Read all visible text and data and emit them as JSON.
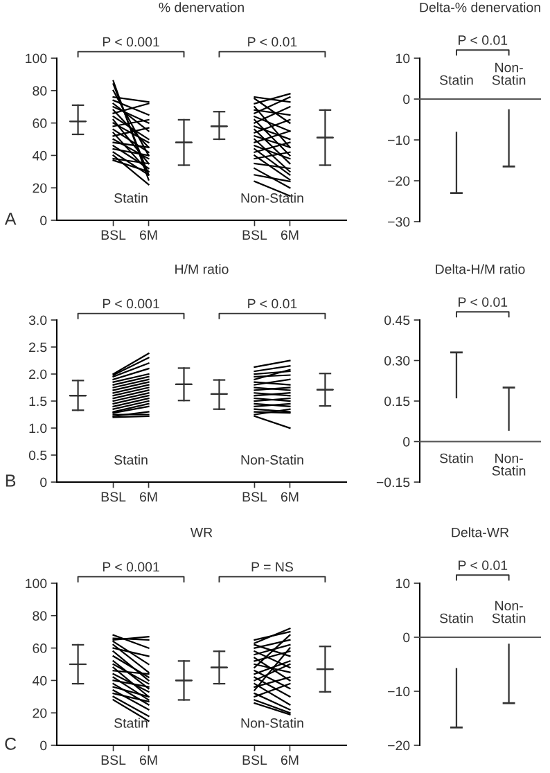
{
  "chart_data": [
    {
      "type": "line",
      "title": "% denervation",
      "categories": [
        null,
        "BSL",
        "6M",
        null,
        null,
        "BSL",
        "6M",
        null
      ],
      "ylim": [
        0,
        100
      ],
      "yticks": [
        0,
        20,
        40,
        60,
        80,
        100
      ],
      "annotations": [
        "P < 0.001",
        "P < 0.01",
        "Statin",
        "Non-Statin",
        "A"
      ],
      "series": [
        {
          "type": "box",
          "boxes": [
            {
              "low": 53,
              "q1": 61,
              "median": 61,
              "q3": 61,
              "high": 71
            },
            null,
            null,
            {
              "low": 34,
              "q1": 48,
              "median": 48,
              "q3": 48,
              "high": 62
            },
            {
              "low": 50,
              "q1": 58,
              "median": 58,
              "q3": 58,
              "high": 67
            },
            null,
            null,
            {
              "low": 34,
              "q1": 51,
              "median": 51,
              "q3": 51,
              "high": 68
            }
          ],
          "color": "#333333"
        },
        {
          "values": [
            null,
            86,
            25,
            null,
            null,
            null,
            null,
            null
          ],
          "color": "#000000"
        },
        {
          "values": [
            null,
            84,
            28,
            null,
            null,
            null,
            null,
            null
          ],
          "color": "#000000"
        },
        {
          "values": [
            null,
            80,
            40,
            null,
            null,
            null,
            null,
            null
          ],
          "color": "#000000"
        },
        {
          "values": [
            null,
            76,
            73,
            null,
            null,
            null,
            null,
            null
          ],
          "color": "#000000"
        },
        {
          "values": [
            null,
            74,
            65,
            null,
            null,
            null,
            null,
            null
          ],
          "color": "#000000"
        },
        {
          "values": [
            null,
            72,
            55,
            null,
            null,
            null,
            null,
            null
          ],
          "color": "#000000"
        },
        {
          "values": [
            null,
            70,
            60,
            null,
            null,
            null,
            null,
            null
          ],
          "color": "#000000"
        },
        {
          "values": [
            null,
            68,
            45,
            null,
            null,
            null,
            null,
            null
          ],
          "color": "#000000"
        },
        {
          "values": [
            null,
            66,
            72,
            null,
            null,
            null,
            null,
            null
          ],
          "color": "#000000"
        },
        {
          "values": [
            null,
            64,
            50,
            null,
            null,
            null,
            null,
            null
          ],
          "color": "#000000"
        },
        {
          "values": [
            null,
            62,
            35,
            null,
            null,
            null,
            null,
            null
          ],
          "color": "#000000"
        },
        {
          "values": [
            null,
            60,
            48,
            null,
            null,
            null,
            null,
            null
          ],
          "color": "#000000"
        },
        {
          "values": [
            null,
            58,
            62,
            null,
            null,
            null,
            null,
            null
          ],
          "color": "#000000"
        },
        {
          "values": [
            null,
            56,
            42,
            null,
            null,
            null,
            null,
            null
          ],
          "color": "#000000"
        },
        {
          "values": [
            null,
            54,
            30,
            null,
            null,
            null,
            null,
            null
          ],
          "color": "#000000"
        },
        {
          "values": [
            null,
            52,
            57,
            null,
            null,
            null,
            null,
            null
          ],
          "color": "#000000"
        },
        {
          "values": [
            null,
            50,
            38,
            null,
            null,
            null,
            null,
            null
          ],
          "color": "#000000"
        },
        {
          "values": [
            null,
            48,
            45,
            null,
            null,
            null,
            null,
            null
          ],
          "color": "#000000"
        },
        {
          "values": [
            null,
            46,
            32,
            null,
            null,
            null,
            null,
            null
          ],
          "color": "#000000"
        },
        {
          "values": [
            null,
            44,
            40,
            null,
            null,
            null,
            null,
            null
          ],
          "color": "#000000"
        },
        {
          "values": [
            null,
            42,
            28,
            null,
            null,
            null,
            null,
            null
          ],
          "color": "#000000"
        },
        {
          "values": [
            null,
            40,
            22,
            null,
            null,
            null,
            null,
            null
          ],
          "color": "#000000"
        },
        {
          "values": [
            null,
            38,
            35,
            null,
            null,
            null,
            null,
            null
          ],
          "color": "#000000"
        },
        {
          "values": [
            null,
            37,
            30,
            null,
            null,
            null,
            null,
            null
          ],
          "color": "#000000"
        },
        {
          "values": [
            null,
            null,
            null,
            null,
            null,
            76,
            73,
            null
          ],
          "color": "#000000"
        },
        {
          "values": [
            null,
            null,
            null,
            null,
            null,
            75,
            60,
            null
          ],
          "color": "#000000"
        },
        {
          "values": [
            null,
            null,
            null,
            null,
            null,
            72,
            78,
            null
          ],
          "color": "#000000"
        },
        {
          "values": [
            null,
            null,
            null,
            null,
            null,
            70,
            45,
            null
          ],
          "color": "#000000"
        },
        {
          "values": [
            null,
            null,
            null,
            null,
            null,
            68,
            65,
            null
          ],
          "color": "#000000"
        },
        {
          "values": [
            null,
            null,
            null,
            null,
            null,
            66,
            76,
            null
          ],
          "color": "#000000"
        },
        {
          "values": [
            null,
            null,
            null,
            null,
            null,
            64,
            55,
            null
          ],
          "color": "#000000"
        },
        {
          "values": [
            null,
            null,
            null,
            null,
            null,
            62,
            40,
            null
          ],
          "color": "#000000"
        },
        {
          "values": [
            null,
            null,
            null,
            null,
            null,
            60,
            70,
            null
          ],
          "color": "#000000"
        },
        {
          "values": [
            null,
            null,
            null,
            null,
            null,
            58,
            50,
            null
          ],
          "color": "#000000"
        },
        {
          "values": [
            null,
            null,
            null,
            null,
            null,
            56,
            35,
            null
          ],
          "color": "#000000"
        },
        {
          "values": [
            null,
            null,
            null,
            null,
            null,
            54,
            62,
            null
          ],
          "color": "#000000"
        },
        {
          "values": [
            null,
            null,
            null,
            null,
            null,
            52,
            45,
            null
          ],
          "color": "#000000"
        },
        {
          "values": [
            null,
            null,
            null,
            null,
            null,
            50,
            30,
            null
          ],
          "color": "#000000"
        },
        {
          "values": [
            null,
            null,
            null,
            null,
            null,
            48,
            55,
            null
          ],
          "color": "#000000"
        },
        {
          "values": [
            null,
            null,
            null,
            null,
            null,
            46,
            38,
            null
          ],
          "color": "#000000"
        },
        {
          "values": [
            null,
            null,
            null,
            null,
            null,
            44,
            28,
            null
          ],
          "color": "#000000"
        },
        {
          "values": [
            null,
            null,
            null,
            null,
            null,
            42,
            48,
            null
          ],
          "color": "#000000"
        },
        {
          "values": [
            null,
            null,
            null,
            null,
            null,
            40,
            25,
            null
          ],
          "color": "#000000"
        },
        {
          "values": [
            null,
            null,
            null,
            null,
            null,
            38,
            42,
            null
          ],
          "color": "#000000"
        },
        {
          "values": [
            null,
            null,
            null,
            null,
            null,
            35,
            32,
            null
          ],
          "color": "#000000"
        },
        {
          "values": [
            null,
            null,
            null,
            null,
            null,
            32,
            20,
            null
          ],
          "color": "#000000"
        },
        {
          "values": [
            null,
            null,
            null,
            null,
            null,
            28,
            24,
            null
          ],
          "color": "#000000"
        },
        {
          "values": [
            null,
            null,
            null,
            null,
            null,
            24,
            15,
            null
          ],
          "color": "#000000"
        }
      ]
    },
    {
      "type": "bar",
      "title": "Delta-% denervation",
      "categories": [
        "Statin",
        "Non-\nStatin"
      ],
      "values": [
        15,
        14
      ],
      "base": [
        -23,
        -16.5
      ],
      "color": "#333333",
      "ylim": [
        -30,
        10
      ],
      "yticks": [
        {
          "value": -30,
          "label": "−30"
        },
        {
          "value": -20,
          "label": "−20"
        },
        {
          "value": -10,
          "label": "−10"
        },
        0,
        10
      ],
      "annotations": [
        "P < 0.01"
      ]
    },
    {
      "type": "line",
      "title": "H/M ratio",
      "categories": [
        null,
        "BSL",
        "6M",
        null,
        null,
        "BSL",
        "6M",
        null
      ],
      "ylim": [
        0,
        3
      ],
      "yticks": [
        0,
        0.5,
        {
          "value": 1,
          "label": "1.0"
        },
        1.5,
        {
          "value": 2,
          "label": "2.0"
        },
        2.5,
        {
          "value": 3,
          "label": "3.0"
        }
      ],
      "annotations": [
        "P < 0.001",
        "P < 0.01",
        "Statin",
        "Non-Statin",
        "B"
      ],
      "series": [
        {
          "type": "box",
          "boxes": [
            {
              "low": 1.33,
              "q1": 1.6,
              "median": 1.6,
              "q3": 1.6,
              "high": 1.88
            },
            null,
            null,
            {
              "low": 1.51,
              "q1": 1.81,
              "median": 1.81,
              "q3": 1.81,
              "high": 2.11
            },
            {
              "low": 1.35,
              "q1": 1.63,
              "median": 1.63,
              "q3": 1.63,
              "high": 1.89
            },
            null,
            null,
            {
              "low": 1.41,
              "q1": 1.71,
              "median": 1.71,
              "q3": 1.71,
              "high": 2.01
            }
          ],
          "color": "#333333"
        },
        {
          "values": [
            null,
            2.0,
            2.38,
            null,
            null,
            null,
            null,
            null
          ],
          "color": "#000000"
        },
        {
          "values": [
            null,
            1.98,
            2.3,
            null,
            null,
            null,
            null,
            null
          ],
          "color": "#000000"
        },
        {
          "values": [
            null,
            1.95,
            2.2,
            null,
            null,
            null,
            null,
            null
          ],
          "color": "#000000"
        },
        {
          "values": [
            null,
            1.9,
            2.1,
            null,
            null,
            null,
            null,
            null
          ],
          "color": "#000000"
        },
        {
          "values": [
            null,
            1.85,
            2.0,
            null,
            null,
            null,
            null,
            null
          ],
          "color": "#000000"
        },
        {
          "values": [
            null,
            1.8,
            1.95,
            null,
            null,
            null,
            null,
            null
          ],
          "color": "#000000"
        },
        {
          "values": [
            null,
            1.75,
            1.9,
            null,
            null,
            null,
            null,
            null
          ],
          "color": "#000000"
        },
        {
          "values": [
            null,
            1.7,
            1.85,
            null,
            null,
            null,
            null,
            null
          ],
          "color": "#000000"
        },
        {
          "values": [
            null,
            1.65,
            1.8,
            null,
            null,
            null,
            null,
            null
          ],
          "color": "#000000"
        },
        {
          "values": [
            null,
            1.6,
            1.75,
            null,
            null,
            null,
            null,
            null
          ],
          "color": "#000000"
        },
        {
          "values": [
            null,
            1.55,
            1.7,
            null,
            null,
            null,
            null,
            null
          ],
          "color": "#000000"
        },
        {
          "values": [
            null,
            1.5,
            1.65,
            null,
            null,
            null,
            null,
            null
          ],
          "color": "#000000"
        },
        {
          "values": [
            null,
            1.45,
            1.6,
            null,
            null,
            null,
            null,
            null
          ],
          "color": "#000000"
        },
        {
          "values": [
            null,
            1.4,
            1.55,
            null,
            null,
            null,
            null,
            null
          ],
          "color": "#000000"
        },
        {
          "values": [
            null,
            1.35,
            1.5,
            null,
            null,
            null,
            null,
            null
          ],
          "color": "#000000"
        },
        {
          "values": [
            null,
            1.3,
            1.45,
            null,
            null,
            null,
            null,
            null
          ],
          "color": "#000000"
        },
        {
          "values": [
            null,
            1.28,
            1.4,
            null,
            null,
            null,
            null,
            null
          ],
          "color": "#000000"
        },
        {
          "values": [
            null,
            1.25,
            1.25,
            null,
            null,
            null,
            null,
            null
          ],
          "color": "#000000"
        },
        {
          "values": [
            null,
            1.22,
            1.3,
            null,
            null,
            null,
            null,
            null
          ],
          "color": "#000000"
        },
        {
          "values": [
            null,
            1.2,
            1.22,
            null,
            null,
            null,
            null,
            null
          ],
          "color": "#000000"
        },
        {
          "values": [
            null,
            null,
            null,
            null,
            null,
            2.13,
            2.25,
            null
          ],
          "color": "#000000"
        },
        {
          "values": [
            null,
            null,
            null,
            null,
            null,
            2.05,
            2.15,
            null
          ],
          "color": "#000000"
        },
        {
          "values": [
            null,
            null,
            null,
            null,
            null,
            2.0,
            2.05,
            null
          ],
          "color": "#000000"
        },
        {
          "values": [
            null,
            null,
            null,
            null,
            null,
            1.95,
            1.98,
            null
          ],
          "color": "#000000"
        },
        {
          "values": [
            null,
            null,
            null,
            null,
            null,
            1.9,
            2.08,
            null
          ],
          "color": "#000000"
        },
        {
          "values": [
            null,
            null,
            null,
            null,
            null,
            1.85,
            1.8,
            null
          ],
          "color": "#000000"
        },
        {
          "values": [
            null,
            null,
            null,
            null,
            null,
            1.8,
            1.9,
            null
          ],
          "color": "#000000"
        },
        {
          "values": [
            null,
            null,
            null,
            null,
            null,
            1.75,
            1.7,
            null
          ],
          "color": "#000000"
        },
        {
          "values": [
            null,
            null,
            null,
            null,
            null,
            1.7,
            1.75,
            null
          ],
          "color": "#000000"
        },
        {
          "values": [
            null,
            null,
            null,
            null,
            null,
            1.65,
            1.6,
            null
          ],
          "color": "#000000"
        },
        {
          "values": [
            null,
            null,
            null,
            null,
            null,
            1.6,
            1.65,
            null
          ],
          "color": "#000000"
        },
        {
          "values": [
            null,
            null,
            null,
            null,
            null,
            1.55,
            1.5,
            null
          ],
          "color": "#000000"
        },
        {
          "values": [
            null,
            null,
            null,
            null,
            null,
            1.5,
            1.55,
            null
          ],
          "color": "#000000"
        },
        {
          "values": [
            null,
            null,
            null,
            null,
            null,
            1.45,
            1.4,
            null
          ],
          "color": "#000000"
        },
        {
          "values": [
            null,
            null,
            null,
            null,
            null,
            1.4,
            1.45,
            null
          ],
          "color": "#000000"
        },
        {
          "values": [
            null,
            null,
            null,
            null,
            null,
            1.35,
            1.3,
            null
          ],
          "color": "#000000"
        },
        {
          "values": [
            null,
            null,
            null,
            null,
            null,
            1.3,
            1.28,
            null
          ],
          "color": "#000000"
        },
        {
          "values": [
            null,
            null,
            null,
            null,
            null,
            1.25,
            1.35,
            null
          ],
          "color": "#000000"
        },
        {
          "values": [
            null,
            null,
            null,
            null,
            null,
            1.22,
            1.0,
            null
          ],
          "color": "#000000"
        }
      ]
    },
    {
      "type": "bar",
      "title": "Delta-H/M ratio",
      "categories": [
        "Statin",
        "Non-\nStatin"
      ],
      "values": [
        0.17,
        0.16
      ],
      "base": [
        0.16,
        0.04
      ],
      "color": "#333333",
      "ylim": [
        -0.15,
        0.45
      ],
      "yticks": [
        {
          "value": -0.15,
          "label": "−0.15"
        },
        0,
        0.15,
        {
          "value": 0.3,
          "label": "0.30"
        },
        0.45
      ],
      "annotations": [
        "P < 0.01"
      ]
    },
    {
      "type": "line",
      "title": "WR",
      "categories": [
        null,
        "BSL",
        "6M",
        null,
        null,
        "BSL",
        "6M",
        null
      ],
      "ylim": [
        0,
        100
      ],
      "yticks": [
        0,
        20,
        40,
        60,
        80,
        100
      ],
      "annotations": [
        "P < 0.001",
        "P = NS",
        "Statin",
        "Non-Statin",
        "C"
      ],
      "series": [
        {
          "type": "box",
          "boxes": [
            {
              "low": 38,
              "q1": 50,
              "median": 50,
              "q3": 50,
              "high": 62
            },
            null,
            null,
            {
              "low": 28,
              "q1": 40,
              "median": 40,
              "q3": 40,
              "high": 52
            },
            {
              "low": 38,
              "q1": 48,
              "median": 48,
              "q3": 48,
              "high": 58
            },
            null,
            null,
            {
              "low": 33,
              "q1": 47,
              "median": 47,
              "q3": 47,
              "high": 61
            }
          ],
          "color": "#333333"
        },
        {
          "values": [
            null,
            68,
            60,
            null,
            null,
            null,
            null,
            null
          ],
          "color": "#000000"
        },
        {
          "values": [
            null,
            66,
            65,
            null,
            null,
            null,
            null,
            null
          ],
          "color": "#000000"
        },
        {
          "values": [
            null,
            65,
            67,
            null,
            null,
            null,
            null,
            null
          ],
          "color": "#000000"
        },
        {
          "values": [
            null,
            64,
            50,
            null,
            null,
            null,
            null,
            null
          ],
          "color": "#000000"
        },
        {
          "values": [
            null,
            62,
            45,
            null,
            null,
            null,
            null,
            null
          ],
          "color": "#000000"
        },
        {
          "values": [
            null,
            60,
            55,
            null,
            null,
            null,
            null,
            null
          ],
          "color": "#000000"
        },
        {
          "values": [
            null,
            58,
            40,
            null,
            null,
            null,
            null,
            null
          ],
          "color": "#000000"
        },
        {
          "values": [
            null,
            55,
            42,
            null,
            null,
            null,
            null,
            null
          ],
          "color": "#000000"
        },
        {
          "values": [
            null,
            52,
            35,
            null,
            null,
            null,
            null,
            null
          ],
          "color": "#000000"
        },
        {
          "values": [
            null,
            50,
            38,
            null,
            null,
            null,
            null,
            null
          ],
          "color": "#000000"
        },
        {
          "values": [
            null,
            48,
            30,
            null,
            null,
            null,
            null,
            null
          ],
          "color": "#000000"
        },
        {
          "values": [
            null,
            46,
            44,
            null,
            null,
            null,
            null,
            null
          ],
          "color": "#000000"
        },
        {
          "values": [
            null,
            44,
            33,
            null,
            null,
            null,
            null,
            null
          ],
          "color": "#000000"
        },
        {
          "values": [
            null,
            42,
            28,
            null,
            null,
            null,
            null,
            null
          ],
          "color": "#000000"
        },
        {
          "values": [
            null,
            40,
            36,
            null,
            null,
            null,
            null,
            null
          ],
          "color": "#000000"
        },
        {
          "values": [
            null,
            38,
            25,
            null,
            null,
            null,
            null,
            null
          ],
          "color": "#000000"
        },
        {
          "values": [
            null,
            36,
            30,
            null,
            null,
            null,
            null,
            null
          ],
          "color": "#000000"
        },
        {
          "values": [
            null,
            34,
            22,
            null,
            null,
            null,
            null,
            null
          ],
          "color": "#000000"
        },
        {
          "values": [
            null,
            32,
            27,
            null,
            null,
            null,
            null,
            null
          ],
          "color": "#000000"
        },
        {
          "values": [
            null,
            30,
            18,
            null,
            null,
            null,
            null,
            null
          ],
          "color": "#000000"
        },
        {
          "values": [
            null,
            28,
            15,
            null,
            null,
            null,
            null,
            null
          ],
          "color": "#000000"
        },
        {
          "values": [
            null,
            null,
            null,
            null,
            null,
            65,
            70,
            null
          ],
          "color": "#000000"
        },
        {
          "values": [
            null,
            null,
            null,
            null,
            null,
            63,
            72,
            null
          ],
          "color": "#000000"
        },
        {
          "values": [
            null,
            null,
            null,
            null,
            null,
            62,
            55,
            null
          ],
          "color": "#000000"
        },
        {
          "values": [
            null,
            null,
            null,
            null,
            null,
            60,
            65,
            null
          ],
          "color": "#000000"
        },
        {
          "values": [
            null,
            null,
            null,
            null,
            null,
            58,
            48,
            null
          ],
          "color": "#000000"
        },
        {
          "values": [
            null,
            null,
            null,
            null,
            null,
            56,
            62,
            null
          ],
          "color": "#000000"
        },
        {
          "values": [
            null,
            null,
            null,
            null,
            null,
            54,
            40,
            null
          ],
          "color": "#000000"
        },
        {
          "values": [
            null,
            null,
            null,
            null,
            null,
            52,
            58,
            null
          ],
          "color": "#000000"
        },
        {
          "values": [
            null,
            null,
            null,
            null,
            null,
            50,
            45,
            null
          ],
          "color": "#000000"
        },
        {
          "values": [
            null,
            null,
            null,
            null,
            null,
            48,
            68,
            null
          ],
          "color": "#000000"
        },
        {
          "values": [
            null,
            null,
            null,
            null,
            null,
            46,
            35,
            null
          ],
          "color": "#000000"
        },
        {
          "values": [
            null,
            null,
            null,
            null,
            null,
            44,
            52,
            null
          ],
          "color": "#000000"
        },
        {
          "values": [
            null,
            null,
            null,
            null,
            null,
            42,
            30,
            null
          ],
          "color": "#000000"
        },
        {
          "values": [
            null,
            null,
            null,
            null,
            null,
            40,
            50,
            null
          ],
          "color": "#000000"
        },
        {
          "values": [
            null,
            null,
            null,
            null,
            null,
            38,
            25,
            null
          ],
          "color": "#000000"
        },
        {
          "values": [
            null,
            null,
            null,
            null,
            null,
            36,
            42,
            null
          ],
          "color": "#000000"
        },
        {
          "values": [
            null,
            null,
            null,
            null,
            null,
            34,
            60,
            null
          ],
          "color": "#000000"
        },
        {
          "values": [
            null,
            null,
            null,
            null,
            null,
            32,
            22,
            null
          ],
          "color": "#000000"
        },
        {
          "values": [
            null,
            null,
            null,
            null,
            null,
            30,
            38,
            null
          ],
          "color": "#000000"
        },
        {
          "values": [
            null,
            null,
            null,
            null,
            null,
            28,
            20,
            null
          ],
          "color": "#000000"
        },
        {
          "values": [
            null,
            null,
            null,
            null,
            null,
            26,
            19,
            null
          ],
          "color": "#000000"
        }
      ]
    },
    {
      "type": "bar",
      "title": "Delta-WR",
      "categories": [
        "Statin",
        "Non-\nStatin"
      ],
      "values": [
        11,
        11
      ],
      "base": [
        -16.7,
        -12.2
      ],
      "color": "#333333",
      "ylim": [
        -20,
        10
      ],
      "yticks": [
        {
          "value": -20,
          "label": "−20"
        },
        {
          "value": -10,
          "label": "−10"
        },
        0,
        10
      ],
      "annotations": [
        "P < 0.01"
      ]
    }
  ]
}
